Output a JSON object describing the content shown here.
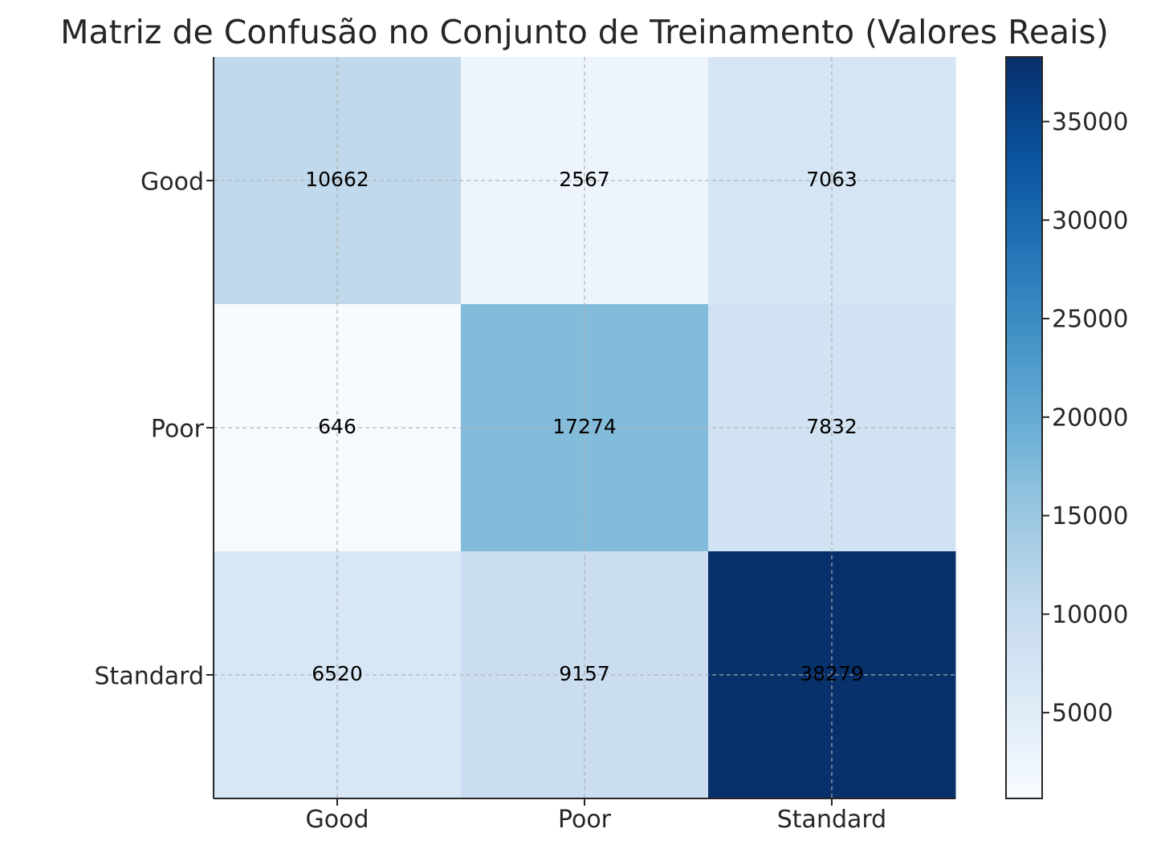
{
  "chart_data": {
    "type": "heatmap",
    "title": "Matriz de Confusão no Conjunto de Treinamento (Valores Reais)",
    "xlabel": "",
    "ylabel": "",
    "x_categories": [
      "Good",
      "Poor",
      "Standard"
    ],
    "y_categories": [
      "Good",
      "Poor",
      "Standard"
    ],
    "values": [
      [
        10662,
        2567,
        7063
      ],
      [
        646,
        17274,
        7832
      ],
      [
        6520,
        9157,
        38279
      ]
    ],
    "colormap": "Blues",
    "grid": true,
    "colorbar": {
      "range": [
        646,
        38279
      ],
      "ticks": [
        5000,
        10000,
        15000,
        20000,
        25000,
        30000,
        35000
      ],
      "tick_labels": [
        "5000",
        "10000",
        "15000",
        "20000",
        "25000",
        "30000",
        "35000"
      ]
    },
    "colors": {
      "low": "#f7fbff",
      "high": "#08306b",
      "grid": "#b0b0b0",
      "axis": "#262626",
      "title": "#262626"
    }
  }
}
